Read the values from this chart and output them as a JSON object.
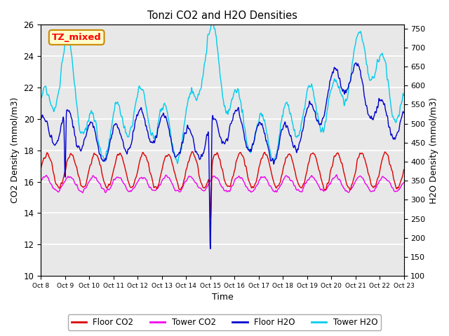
{
  "title": "Tonzi CO2 and H2O Densities",
  "xlabel": "Time",
  "ylabel_left": "CO2 Density (mmol/m3)",
  "ylabel_right": "H2O Density (mmol/m3)",
  "ylim_left": [
    10,
    26
  ],
  "ylim_right": [
    100,
    760
  ],
  "annotation_label": "TZ_mixed",
  "bg_color": "#e8e8e8",
  "fig_bg": "#ffffff",
  "colors": {
    "floor_co2": "#dd0000",
    "tower_co2": "#ee00ee",
    "floor_h2o": "#0000cc",
    "tower_h2o": "#00ccee"
  },
  "legend_labels": [
    "Floor CO2",
    "Tower CO2",
    "Floor H2O",
    "Tower H2O"
  ],
  "xticklabels": [
    "Oct 8",
    "Oct 9",
    "Oct 10",
    "Oct 11",
    "Oct 12",
    "Oct 13",
    "Oct 14",
    "Oct 15",
    "Oct 16",
    "Oct 17",
    "Oct 18",
    "Oct 19",
    "Oct 20",
    "Oct 21",
    "Oct 22",
    "Oct 23"
  ],
  "yticks_left": [
    10,
    12,
    14,
    16,
    18,
    20,
    22,
    24,
    26
  ],
  "yticks_right": [
    100,
    150,
    200,
    250,
    300,
    350,
    400,
    450,
    500,
    550,
    600,
    650,
    700,
    750
  ]
}
